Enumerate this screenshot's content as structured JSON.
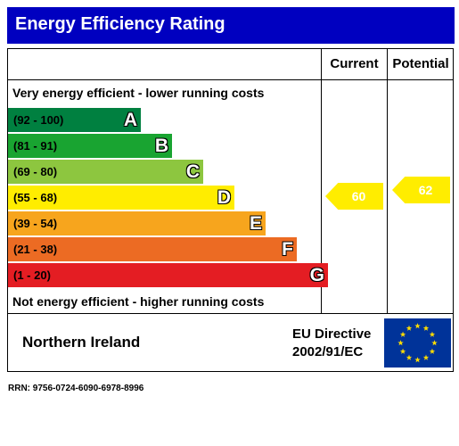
{
  "title": "Energy Efficiency Rating",
  "columns": {
    "current": "Current",
    "potential": "Potential"
  },
  "top_caption": "Very energy efficient - lower running costs",
  "bottom_caption": "Not energy efficient - higher running costs",
  "chart_data": {
    "type": "bar",
    "bands": [
      {
        "range": "(92 - 100)",
        "letter": "A",
        "color": "#008040"
      },
      {
        "range": "(81 - 91)",
        "letter": "B",
        "color": "#19a431"
      },
      {
        "range": "(69 - 80)",
        "letter": "C",
        "color": "#8dc63f"
      },
      {
        "range": "(55 - 68)",
        "letter": "D",
        "color": "#ffed00"
      },
      {
        "range": "(39 - 54)",
        "letter": "E",
        "color": "#f7a51d"
      },
      {
        "range": "(21 - 38)",
        "letter": "F",
        "color": "#ec6b23"
      },
      {
        "range": "(1 - 20)",
        "letter": "G",
        "color": "#e41d23"
      }
    ],
    "current": {
      "value": 60,
      "band": "D",
      "color": "#ffed00"
    },
    "potential": {
      "value": 62,
      "band": "D",
      "color": "#ffed00"
    }
  },
  "footer": {
    "region": "Northern Ireland",
    "directive_line1": "EU Directive",
    "directive_line2": "2002/91/EC"
  },
  "colors": {
    "title_bar": "#0000c0",
    "eu_flag": "#003399",
    "eu_stars": "#ffdd00"
  },
  "rrn": "RRN: 9756-0724-6090-6978-8996"
}
